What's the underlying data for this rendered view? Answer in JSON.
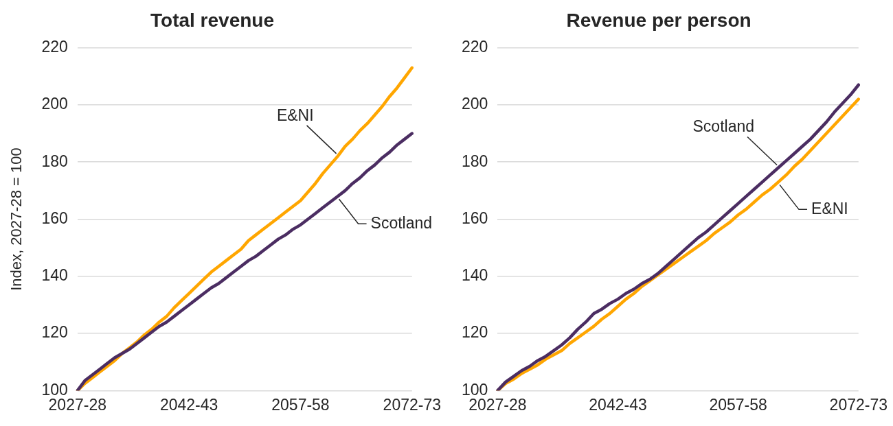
{
  "chart_data": [
    {
      "type": "line",
      "title": "Total revenue",
      "ylabel": "Index, 2027-28 = 100",
      "categories": [
        "2027-28",
        null,
        null,
        null,
        null,
        null,
        null,
        null,
        null,
        null,
        null,
        null,
        null,
        null,
        null,
        "2042-43",
        null,
        null,
        null,
        null,
        null,
        null,
        null,
        null,
        null,
        null,
        null,
        null,
        null,
        null,
        "2057-58",
        null,
        null,
        null,
        null,
        null,
        null,
        null,
        null,
        null,
        null,
        null,
        null,
        null,
        null,
        "2072-73"
      ],
      "ylim": [
        100,
        220
      ],
      "yticks": [
        100,
        120,
        140,
        160,
        180,
        200,
        220
      ],
      "grid": "y",
      "series": [
        {
          "name": "Scotland",
          "color": "#4b2d62",
          "values": [
            100,
            103.5,
            105.5,
            107.5,
            109.5,
            111.5,
            113,
            114.5,
            116.5,
            118.5,
            120.5,
            122.5,
            124,
            126,
            128,
            130,
            132,
            134,
            136,
            137.5,
            139.5,
            141.5,
            143.5,
            145.5,
            147,
            149,
            151,
            153,
            154.5,
            156.5,
            158,
            160,
            162,
            164,
            166,
            168,
            170,
            172.5,
            174.5,
            177,
            179,
            181.5,
            183.5,
            186,
            188,
            190
          ]
        },
        {
          "name": "E&NI",
          "color": "#ffa600",
          "values": [
            100,
            102.5,
            104.5,
            106.5,
            108.5,
            110.5,
            113,
            115,
            117,
            119.5,
            121.5,
            124,
            126,
            129,
            131.5,
            134,
            136.5,
            139,
            141.5,
            143.5,
            145.5,
            147.5,
            149.5,
            152.5,
            154.5,
            156.5,
            158.5,
            160.5,
            162.5,
            164.5,
            166.5,
            169.5,
            172.5,
            176,
            179,
            182,
            185.5,
            188,
            191,
            193.5,
            196.5,
            199.5,
            203,
            206,
            209.5,
            213
          ]
        }
      ]
    },
    {
      "type": "line",
      "title": "Revenue per person",
      "categories": [
        "2027-28",
        null,
        null,
        null,
        null,
        null,
        null,
        null,
        null,
        null,
        null,
        null,
        null,
        null,
        null,
        "2042-43",
        null,
        null,
        null,
        null,
        null,
        null,
        null,
        null,
        null,
        null,
        null,
        null,
        null,
        null,
        "2057-58",
        null,
        null,
        null,
        null,
        null,
        null,
        null,
        null,
        null,
        null,
        null,
        null,
        null,
        null,
        "2072-73"
      ],
      "ylim": [
        100,
        220
      ],
      "yticks": [
        100,
        120,
        140,
        160,
        180,
        200,
        220
      ],
      "grid": "y",
      "series": [
        {
          "name": "Scotland",
          "color": "#4b2d62",
          "values": [
            100,
            103,
            105,
            107,
            108.5,
            110.5,
            112,
            114,
            116,
            118.5,
            121.5,
            124,
            127,
            128.5,
            130.5,
            132,
            134,
            135.5,
            137.5,
            139,
            141,
            143.5,
            146,
            148.5,
            151,
            153.5,
            155.5,
            158,
            160.5,
            163,
            165.5,
            168,
            170.5,
            173,
            175.5,
            178,
            180.5,
            183,
            185.5,
            188,
            191,
            194,
            197.5,
            200.5,
            203.5,
            207
          ]
        },
        {
          "name": "E&NI",
          "color": "#ffa600",
          "values": [
            100,
            102.5,
            104,
            106,
            107.5,
            109,
            111,
            112.5,
            114,
            116.5,
            118.5,
            120.5,
            122.5,
            125,
            127,
            129.5,
            132,
            134,
            136.5,
            138.5,
            140.5,
            142.5,
            144.5,
            146.5,
            148.5,
            150.5,
            152.5,
            155,
            157,
            159,
            161.5,
            163.5,
            166,
            168.5,
            170.5,
            173,
            175.5,
            178.5,
            181,
            184,
            187,
            190,
            193,
            196,
            199,
            202
          ]
        }
      ]
    }
  ]
}
